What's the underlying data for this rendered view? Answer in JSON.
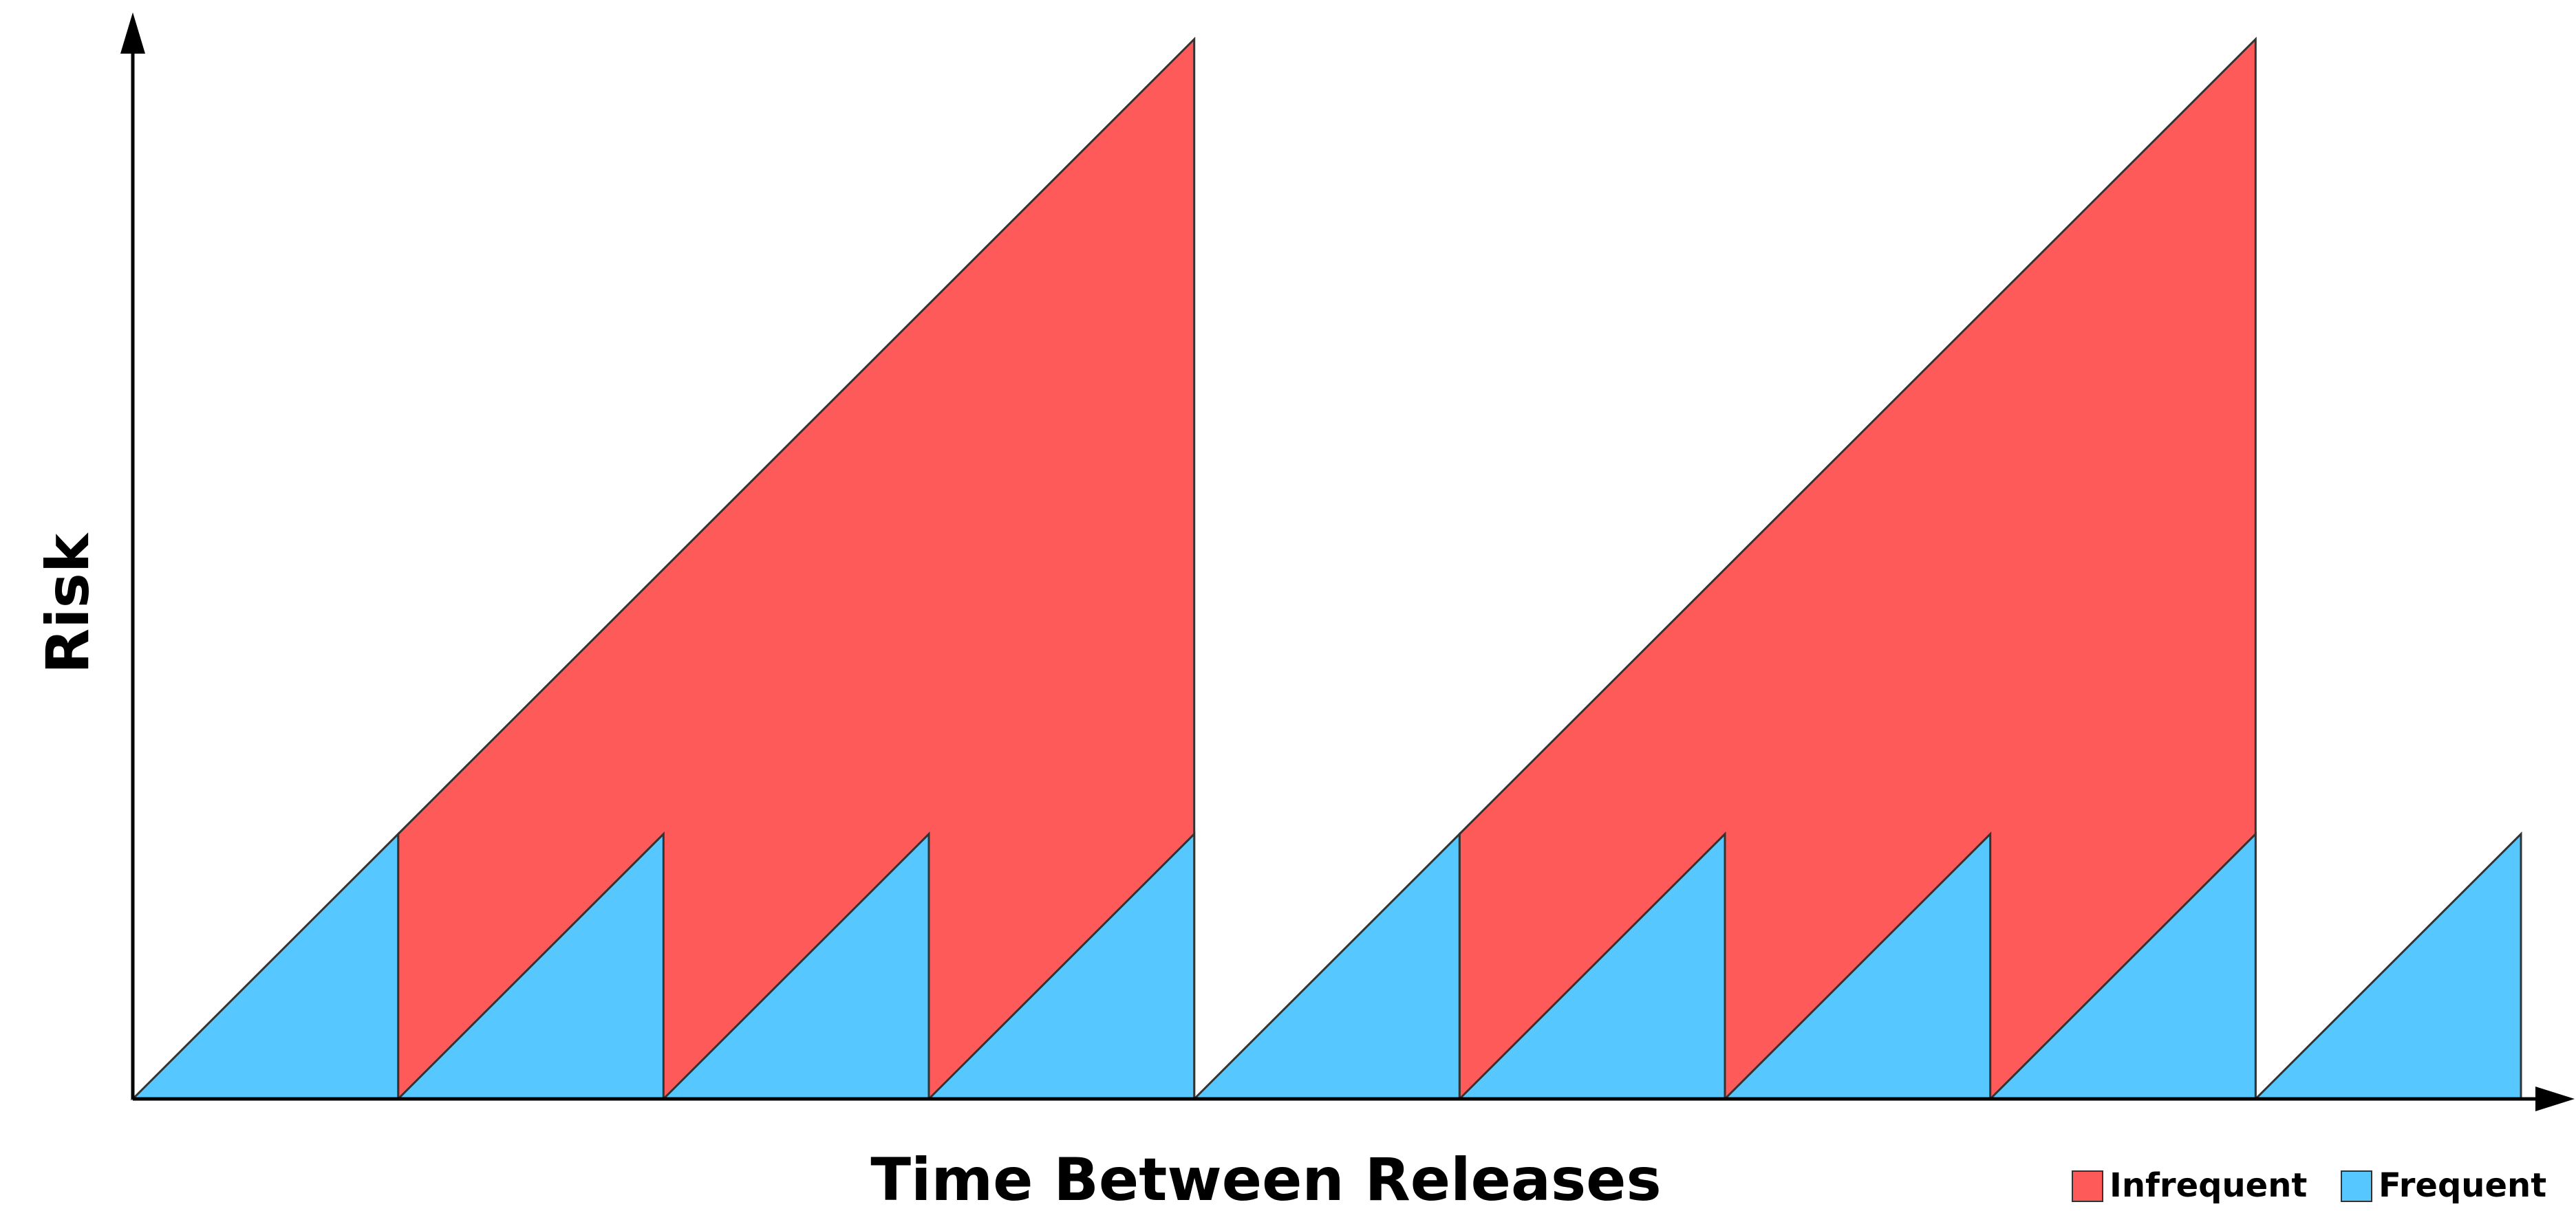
{
  "chart_data": {
    "type": "area",
    "xlabel": "Time Between Releases",
    "ylabel": "Risk",
    "grid": false,
    "tick_labels": false,
    "legend_position": "bottom-right",
    "x_range": [
      0,
      9
    ],
    "y_range": [
      0,
      4
    ],
    "series": [
      {
        "name": "Infrequent",
        "color": "#ff5a5a",
        "shape": "sawtooth",
        "cycles": [
          {
            "start": 1,
            "end": 4,
            "start_risk": 1,
            "peak_risk": 4
          },
          {
            "start": 5,
            "end": 8,
            "start_risk": 1,
            "peak_risk": 4
          }
        ]
      },
      {
        "name": "Frequent",
        "color": "#57c7ff",
        "shape": "sawtooth",
        "cycles": [
          {
            "start": 0,
            "end": 1,
            "start_risk": 0,
            "peak_risk": 1
          },
          {
            "start": 1,
            "end": 2,
            "start_risk": 0,
            "peak_risk": 1
          },
          {
            "start": 2,
            "end": 3,
            "start_risk": 0,
            "peak_risk": 1
          },
          {
            "start": 3,
            "end": 4,
            "start_risk": 0,
            "peak_risk": 1
          },
          {
            "start": 4,
            "end": 5,
            "start_risk": 0,
            "peak_risk": 1
          },
          {
            "start": 5,
            "end": 6,
            "start_risk": 0,
            "peak_risk": 1
          },
          {
            "start": 6,
            "end": 7,
            "start_risk": 0,
            "peak_risk": 1
          },
          {
            "start": 7,
            "end": 8,
            "start_risk": 0,
            "peak_risk": 1
          },
          {
            "start": 8,
            "end": 9,
            "start_risk": 0,
            "peak_risk": 1
          }
        ]
      }
    ],
    "legend": [
      {
        "label": "Infrequent",
        "color": "#ff5a5a"
      },
      {
        "label": "Frequent",
        "color": "#57c7ff"
      }
    ]
  }
}
